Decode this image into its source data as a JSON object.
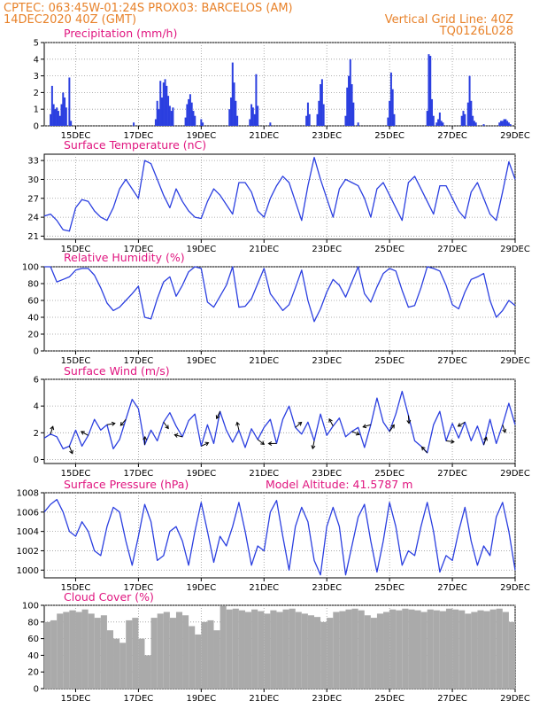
{
  "header": {
    "left_line1": "CPTEC:  063:45W-01:24S  PROX03: BARCELOS (AM)",
    "left_line2": "14DEC2020 40Z (GMT)",
    "right_line1": "Vertical Grid Line: 40Z",
    "right_line2": "TQ0126L028"
  },
  "colors": {
    "header_text": "#e8822a",
    "panel_title": "#e0157f",
    "line": "#2b3fe0",
    "bar": "#2b3fe0",
    "cloud": "#aaaaaa",
    "grid": "#999999"
  },
  "x_axis": {
    "tick_labels": [
      "15DEC",
      "17DEC",
      "19DEC",
      "21DEC",
      "23DEC",
      "25DEC",
      "27DEC",
      "29DEC"
    ],
    "tick_days": [
      1,
      3,
      5,
      7,
      9,
      11,
      13,
      15
    ],
    "day_range": [
      0,
      15
    ]
  },
  "chart_data": [
    {
      "type": "bar",
      "title": "Precipitation (mm/h)",
      "ylim": [
        0,
        5
      ],
      "yticks": [
        0,
        1,
        2,
        3,
        4,
        5
      ],
      "x": [
        0.2,
        0.25,
        0.3,
        0.35,
        0.4,
        0.45,
        0.5,
        0.55,
        0.6,
        0.65,
        0.7,
        0.8,
        0.85,
        2.85,
        3.55,
        3.6,
        3.65,
        3.7,
        3.75,
        3.8,
        3.85,
        3.9,
        3.95,
        4.0,
        4.05,
        4.1,
        4.5,
        4.55,
        4.6,
        4.65,
        4.7,
        4.75,
        4.8,
        5.0,
        5.05,
        5.9,
        5.95,
        6.0,
        6.05,
        6.1,
        6.15,
        6.55,
        6.6,
        6.65,
        6.7,
        6.75,
        6.8,
        7.2,
        8.35,
        8.4,
        8.45,
        8.7,
        8.75,
        8.8,
        8.85,
        8.9,
        9.6,
        9.65,
        9.7,
        9.75,
        9.8,
        9.85,
        10.0,
        10.95,
        11.0,
        11.05,
        11.1,
        11.15,
        12.2,
        12.25,
        12.3,
        12.35,
        12.4,
        12.5,
        12.55,
        12.6,
        12.65,
        12.7,
        13.3,
        13.35,
        13.4,
        13.5,
        13.55,
        13.6,
        13.65,
        13.7,
        13.75,
        14.0,
        14.5,
        14.55,
        14.6,
        14.65,
        14.7,
        14.75,
        14.8,
        14.85
      ],
      "values": [
        0.7,
        2.4,
        1.3,
        1.0,
        1.1,
        0.9,
        0.6,
        1.3,
        2.0,
        1.7,
        1.1,
        2.9,
        0.3,
        0.2,
        0.4,
        1.5,
        1.0,
        2.7,
        1.7,
        2.6,
        2.8,
        2.4,
        1.8,
        1.2,
        0.9,
        1.1,
        0.5,
        1.3,
        1.6,
        1.9,
        1.4,
        0.9,
        0.6,
        0.4,
        0.2,
        1.0,
        1.7,
        3.8,
        2.6,
        1.5,
        0.6,
        0.4,
        1.3,
        1.1,
        0.7,
        3.1,
        1.2,
        0.2,
        0.6,
        1.4,
        0.7,
        0.7,
        1.5,
        2.5,
        2.8,
        1.3,
        0.6,
        2.3,
        3.0,
        4.0,
        2.5,
        1.4,
        0.2,
        0.5,
        1.5,
        3.2,
        2.2,
        0.7,
        0.9,
        4.3,
        4.2,
        1.6,
        0.6,
        0.2,
        0.4,
        0.8,
        0.3,
        0.2,
        0.6,
        0.9,
        0.7,
        1.4,
        3.0,
        1.5,
        0.6,
        0.3,
        0.2,
        0.1,
        0.2,
        0.3,
        0.3,
        0.4,
        0.4,
        0.3,
        0.2,
        0.1
      ]
    },
    {
      "type": "line",
      "title": "Surface Temperature (nC)",
      "ylim": [
        20.5,
        34
      ],
      "yticks": [
        21,
        24,
        27,
        30,
        33
      ],
      "x": [
        0.0,
        0.2,
        0.4,
        0.6,
        0.8,
        1.0,
        1.2,
        1.4,
        1.6,
        1.8,
        2.0,
        2.2,
        2.4,
        2.6,
        2.8,
        3.0,
        3.2,
        3.4,
        3.6,
        3.8,
        4.0,
        4.2,
        4.4,
        4.6,
        4.8,
        5.0,
        5.2,
        5.4,
        5.6,
        5.8,
        6.0,
        6.2,
        6.4,
        6.6,
        6.8,
        7.0,
        7.2,
        7.4,
        7.6,
        7.8,
        8.0,
        8.2,
        8.4,
        8.6,
        8.8,
        9.0,
        9.2,
        9.4,
        9.6,
        9.8,
        10.0,
        10.2,
        10.4,
        10.6,
        10.8,
        11.0,
        11.2,
        11.4,
        11.6,
        11.8,
        12.0,
        12.2,
        12.4,
        12.6,
        12.8,
        13.0,
        13.2,
        13.4,
        13.6,
        13.8,
        14.0,
        14.2,
        14.4,
        14.6,
        14.8,
        15.0
      ],
      "values": [
        24.2,
        24.5,
        23.5,
        22.0,
        21.8,
        25.5,
        26.8,
        26.5,
        25.0,
        24.0,
        23.5,
        25.5,
        28.5,
        30.0,
        28.5,
        27.0,
        33.0,
        32.5,
        30.0,
        27.5,
        25.5,
        28.5,
        26.5,
        25.0,
        24.0,
        23.8,
        26.5,
        28.5,
        27.5,
        26.0,
        24.5,
        29.5,
        29.5,
        28.0,
        25.0,
        24.0,
        27.0,
        29.0,
        30.5,
        29.5,
        26.5,
        23.5,
        29.0,
        33.5,
        30.0,
        27.0,
        24.0,
        28.5,
        30.0,
        29.5,
        29.0,
        27.0,
        24.0,
        28.5,
        29.5,
        27.5,
        25.5,
        23.5,
        29.5,
        30.5,
        28.5,
        26.5,
        24.5,
        29.0,
        29.0,
        27.0,
        25.0,
        23.8,
        28.0,
        29.5,
        27.0,
        24.5,
        23.5,
        28.0,
        32.8,
        30.0
      ]
    },
    {
      "type": "line",
      "title": "Relative Humidity (%)",
      "ylim": [
        0,
        100
      ],
      "yticks": [
        0,
        20,
        40,
        60,
        80,
        100
      ],
      "x": [
        0.0,
        0.2,
        0.4,
        0.6,
        0.8,
        1.0,
        1.2,
        1.4,
        1.6,
        1.8,
        2.0,
        2.2,
        2.4,
        2.6,
        2.8,
        3.0,
        3.2,
        3.4,
        3.6,
        3.8,
        4.0,
        4.2,
        4.4,
        4.6,
        4.8,
        5.0,
        5.2,
        5.4,
        5.6,
        5.8,
        6.0,
        6.2,
        6.4,
        6.6,
        6.8,
        7.0,
        7.2,
        7.4,
        7.6,
        7.8,
        8.0,
        8.2,
        8.4,
        8.6,
        8.8,
        9.0,
        9.2,
        9.4,
        9.6,
        9.8,
        10.0,
        10.2,
        10.4,
        10.6,
        10.8,
        11.0,
        11.2,
        11.4,
        11.6,
        11.8,
        12.0,
        12.2,
        12.4,
        12.6,
        12.8,
        13.0,
        13.2,
        13.4,
        13.6,
        13.8,
        14.0,
        14.2,
        14.4,
        14.6,
        14.8,
        15.0
      ],
      "values": [
        100,
        100,
        82,
        85,
        88,
        96,
        98,
        98,
        90,
        75,
        57,
        48,
        52,
        60,
        68,
        77,
        40,
        38,
        62,
        82,
        88,
        65,
        78,
        94,
        100,
        98,
        58,
        52,
        65,
        78,
        100,
        52,
        53,
        62,
        80,
        98,
        68,
        58,
        48,
        55,
        75,
        96,
        60,
        35,
        50,
        70,
        85,
        78,
        64,
        82,
        100,
        68,
        58,
        76,
        92,
        98,
        95,
        72,
        52,
        54,
        75,
        100,
        98,
        95,
        78,
        55,
        50,
        70,
        85,
        88,
        92,
        60,
        40,
        48,
        60,
        54
      ]
    },
    {
      "type": "line",
      "title": "Surface Wind (m/s)",
      "ylim": [
        -0.3,
        6
      ],
      "yticks": [
        0,
        2,
        4,
        6
      ],
      "x": [
        0.0,
        0.2,
        0.4,
        0.6,
        0.8,
        1.0,
        1.2,
        1.4,
        1.6,
        1.8,
        2.0,
        2.2,
        2.4,
        2.6,
        2.8,
        3.0,
        3.2,
        3.4,
        3.6,
        3.8,
        4.0,
        4.2,
        4.4,
        4.6,
        4.8,
        5.0,
        5.2,
        5.4,
        5.6,
        5.8,
        6.0,
        6.2,
        6.4,
        6.6,
        6.8,
        7.0,
        7.2,
        7.4,
        7.6,
        7.8,
        8.0,
        8.2,
        8.4,
        8.6,
        8.8,
        9.0,
        9.2,
        9.4,
        9.6,
        9.8,
        10.0,
        10.2,
        10.4,
        10.6,
        10.8,
        11.0,
        11.2,
        11.4,
        11.6,
        11.8,
        12.0,
        12.2,
        12.4,
        12.6,
        12.8,
        13.0,
        13.2,
        13.4,
        13.6,
        13.8,
        14.0,
        14.2,
        14.4,
        14.6,
        14.8,
        15.0
      ],
      "values": [
        1.6,
        1.9,
        1.7,
        0.8,
        1.0,
        2.2,
        1.0,
        1.8,
        3.0,
        2.2,
        2.6,
        0.8,
        1.5,
        3.0,
        4.5,
        3.8,
        1.1,
        2.2,
        1.4,
        2.8,
        3.5,
        2.5,
        1.7,
        2.9,
        3.4,
        1.0,
        2.6,
        1.2,
        3.6,
        2.2,
        1.3,
        2.2,
        0.9,
        2.3,
        1.5,
        2.4,
        3.0,
        1.2,
        3.0,
        4.0,
        2.4,
        1.9,
        2.8,
        1.4,
        3.4,
        1.8,
        2.5,
        3.1,
        1.7,
        2.1,
        2.4,
        0.9,
        2.6,
        4.6,
        2.8,
        2.1,
        3.4,
        5.1,
        3.3,
        1.4,
        1.0,
        0.5,
        2.6,
        3.6,
        1.4,
        2.7,
        1.6,
        2.8,
        1.4,
        2.5,
        1.1,
        3.0,
        1.2,
        2.6,
        4.2,
        2.6
      ]
    },
    {
      "type": "line",
      "title": "Surface Pressure (hPa)",
      "annotation": "Model Altitude: 41.5787 m",
      "ylim": [
        999.2,
        1008
      ],
      "yticks": [
        1000,
        1002,
        1004,
        1006,
        1008
      ],
      "x": [
        0.0,
        0.2,
        0.4,
        0.6,
        0.8,
        1.0,
        1.2,
        1.4,
        1.6,
        1.8,
        2.0,
        2.2,
        2.4,
        2.6,
        2.8,
        3.0,
        3.2,
        3.4,
        3.6,
        3.8,
        4.0,
        4.2,
        4.4,
        4.6,
        4.8,
        5.0,
        5.2,
        5.4,
        5.6,
        5.8,
        6.0,
        6.2,
        6.4,
        6.6,
        6.8,
        7.0,
        7.2,
        7.4,
        7.6,
        7.8,
        8.0,
        8.2,
        8.4,
        8.6,
        8.8,
        9.0,
        9.2,
        9.4,
        9.6,
        9.8,
        10.0,
        10.2,
        10.4,
        10.6,
        10.8,
        11.0,
        11.2,
        11.4,
        11.6,
        11.8,
        12.0,
        12.2,
        12.4,
        12.6,
        12.8,
        13.0,
        13.2,
        13.4,
        13.6,
        13.8,
        14.0,
        14.2,
        14.4,
        14.6,
        14.8,
        15.0
      ],
      "values": [
        1006.0,
        1006.8,
        1007.3,
        1006.0,
        1004.0,
        1003.5,
        1005.0,
        1004.0,
        1002.0,
        1001.5,
        1004.5,
        1006.5,
        1006.0,
        1003.0,
        1000.5,
        1003.5,
        1006.8,
        1005.0,
        1001.0,
        1001.5,
        1004.0,
        1004.5,
        1003.0,
        1000.5,
        1004.0,
        1007.0,
        1004.0,
        1000.8,
        1003.5,
        1002.5,
        1004.5,
        1007.0,
        1004.0,
        1000.5,
        1002.5,
        1002.0,
        1006.0,
        1007.2,
        1003.5,
        1000.0,
        1004.5,
        1006.5,
        1005.0,
        1001.0,
        999.5,
        1004.5,
        1006.5,
        1004.5,
        999.5,
        1002.5,
        1005.5,
        1006.8,
        1003.0,
        999.8,
        1003.0,
        1007.0,
        1004.5,
        1000.5,
        1002.0,
        1001.5,
        1004.5,
        1007.0,
        1004.0,
        999.8,
        1001.5,
        1001.0,
        1004.0,
        1006.5,
        1003.0,
        1000.5,
        1002.5,
        1001.5,
        1005.5,
        1007.0,
        1004.0,
        1000.0
      ]
    },
    {
      "type": "bar",
      "title": "Cloud Cover (%)",
      "ylim": [
        0,
        100
      ],
      "yticks": [
        0,
        20,
        40,
        60,
        80,
        100
      ],
      "x": [
        0.0,
        0.2,
        0.4,
        0.6,
        0.8,
        1.0,
        1.2,
        1.4,
        1.6,
        1.8,
        2.0,
        2.2,
        2.4,
        2.6,
        2.8,
        3.0,
        3.2,
        3.4,
        3.6,
        3.8,
        4.0,
        4.2,
        4.4,
        4.6,
        4.8,
        5.0,
        5.2,
        5.4,
        5.6,
        5.8,
        6.0,
        6.2,
        6.4,
        6.6,
        6.8,
        7.0,
        7.2,
        7.4,
        7.6,
        7.8,
        8.0,
        8.2,
        8.4,
        8.6,
        8.8,
        9.0,
        9.2,
        9.4,
        9.6,
        9.8,
        10.0,
        10.2,
        10.4,
        10.6,
        10.8,
        11.0,
        11.2,
        11.4,
        11.6,
        11.8,
        12.0,
        12.2,
        12.4,
        12.6,
        12.8,
        13.0,
        13.2,
        13.4,
        13.6,
        13.8,
        14.0,
        14.2,
        14.4,
        14.6,
        14.8,
        15.0
      ],
      "values": [
        80,
        82,
        90,
        92,
        94,
        92,
        95,
        90,
        85,
        88,
        70,
        60,
        55,
        82,
        85,
        60,
        40,
        85,
        90,
        92,
        85,
        92,
        88,
        75,
        65,
        80,
        82,
        70,
        99,
        95,
        96,
        94,
        92,
        95,
        93,
        90,
        94,
        92,
        95,
        96,
        92,
        90,
        88,
        86,
        80,
        85,
        92,
        93,
        95,
        96,
        94,
        88,
        85,
        90,
        92,
        95,
        94,
        96,
        95,
        94,
        92,
        95,
        94,
        93,
        96,
        95,
        94,
        90,
        92,
        94,
        93,
        95,
        96,
        92,
        80,
        78
      ]
    }
  ]
}
